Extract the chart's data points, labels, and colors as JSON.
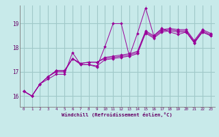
{
  "background_color": "#c8eaea",
  "grid_color": "#a0c8c8",
  "line_color": "#990099",
  "marker_color": "#990099",
  "xlabel": "Windchill (Refroidissement éolien,°C)",
  "ylabel_ticks": [
    16,
    17,
    18,
    19
  ],
  "xlim": [
    -0.5,
    23.5
  ],
  "ylim": [
    15.55,
    19.75
  ],
  "xticks": [
    0,
    1,
    2,
    3,
    4,
    5,
    6,
    7,
    8,
    9,
    10,
    11,
    12,
    13,
    14,
    15,
    16,
    17,
    18,
    19,
    20,
    21,
    22,
    23
  ],
  "series": [
    [
      16.2,
      16.0,
      16.5,
      16.7,
      16.9,
      16.9,
      17.8,
      17.3,
      17.3,
      17.2,
      18.05,
      19.0,
      19.0,
      17.65,
      18.6,
      19.65,
      18.5,
      18.8,
      18.65,
      18.55,
      18.65,
      18.2,
      18.65,
      18.5
    ],
    [
      16.2,
      16.0,
      16.5,
      16.8,
      17.0,
      17.0,
      17.55,
      17.3,
      17.3,
      17.25,
      17.5,
      17.55,
      17.6,
      17.65,
      17.75,
      18.6,
      18.4,
      18.65,
      18.7,
      18.65,
      18.65,
      18.2,
      18.65,
      18.5
    ],
    [
      16.2,
      16.0,
      16.5,
      16.8,
      17.05,
      17.05,
      17.55,
      17.35,
      17.4,
      17.4,
      17.55,
      17.6,
      17.65,
      17.7,
      17.8,
      18.65,
      18.45,
      18.7,
      18.75,
      18.7,
      18.7,
      18.25,
      18.7,
      18.55
    ],
    [
      16.2,
      16.0,
      16.5,
      16.8,
      17.05,
      17.05,
      17.55,
      17.35,
      17.4,
      17.4,
      17.6,
      17.65,
      17.7,
      17.75,
      17.85,
      18.7,
      18.5,
      18.75,
      18.8,
      18.75,
      18.75,
      18.3,
      18.75,
      18.6
    ]
  ],
  "figsize": [
    3.2,
    2.0
  ],
  "dpi": 100
}
